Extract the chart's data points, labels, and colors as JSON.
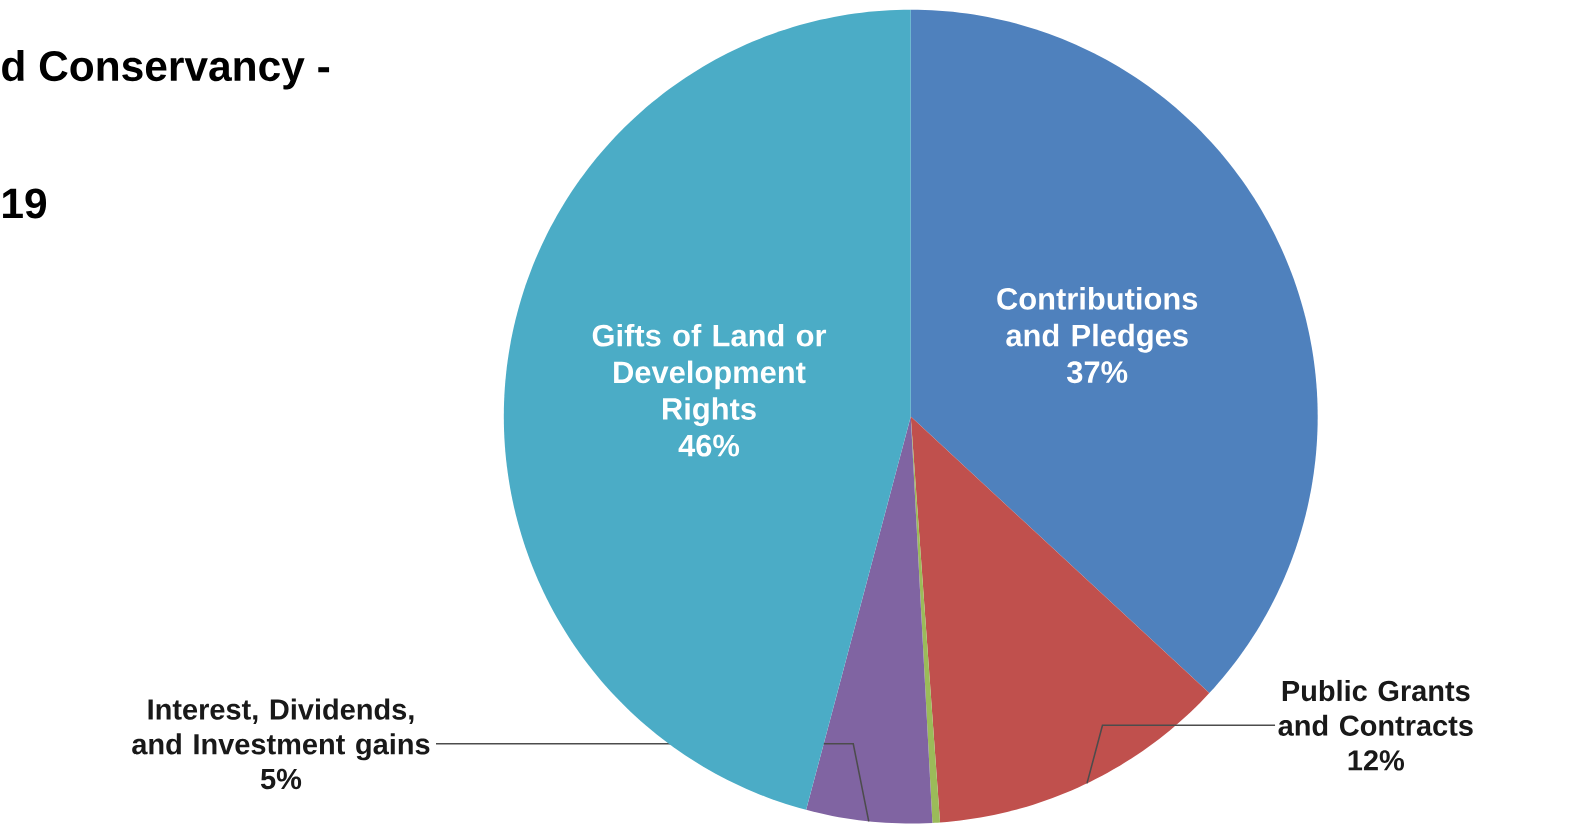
{
  "chart_data": {
    "type": "pie",
    "title": "d Conservancy -",
    "subtitle": "19",
    "categories": [
      "Contributions and Pledges",
      "Public Grants and Contracts",
      null,
      "Interest, Dividends, and Investment gains",
      "Gifts of Land or Development Rights"
    ],
    "values": [
      37,
      12,
      0.3,
      5,
      46
    ],
    "value_labels": [
      "37%",
      "12%",
      null,
      "5%",
      "46%"
    ],
    "colors": [
      "#4f81bd",
      "#c0504d",
      "#9bbb59",
      "#8064a2",
      "#4bacc6"
    ]
  }
}
